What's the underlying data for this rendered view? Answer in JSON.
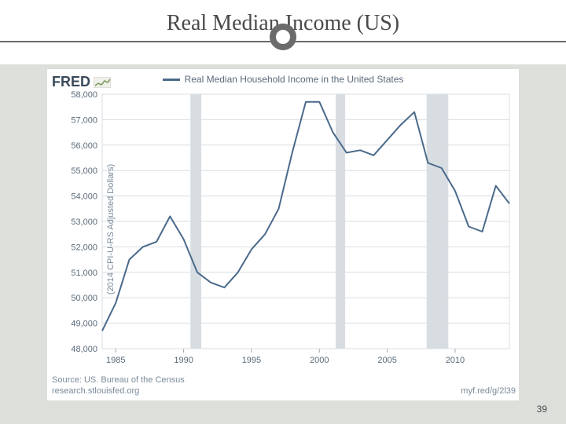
{
  "slide": {
    "title": "Real Median Income (US)",
    "page_number": "39",
    "decor_color": "#6b6b6b"
  },
  "logo": {
    "text": "FRED",
    "color": "#3a4a5a"
  },
  "legend": {
    "label": "Real Median Household Income in the United States",
    "color": "#4a6a8a"
  },
  "chart": {
    "type": "line",
    "background_color": "#ffffff",
    "plot_background": "#ffffff",
    "grid_color": "#d8dde2",
    "axis_color": "#9aa6b2",
    "tick_label_color": "#5a6a7a",
    "tick_fontsize": 11,
    "line_color": "#4a6a8a",
    "line_width": 2,
    "ylabel": "(2014 CPI-U-RS Adjusted Dollars)",
    "xlim": [
      1984,
      2014
    ],
    "ylim": [
      48000,
      58000
    ],
    "xtick_step": 5,
    "xticks": [
      1985,
      1990,
      1995,
      2000,
      2005,
      2010
    ],
    "ytick_step": 1000,
    "yticks": [
      48000,
      49000,
      50000,
      51000,
      52000,
      53000,
      54000,
      55000,
      56000,
      57000,
      58000
    ],
    "recession_bands": [
      {
        "start": 1990.5,
        "end": 1991.3,
        "color": "#d8dde2"
      },
      {
        "start": 2001.2,
        "end": 2001.9,
        "color": "#d8dde2"
      },
      {
        "start": 2007.9,
        "end": 2009.5,
        "color": "#d8dde2"
      }
    ],
    "series": [
      {
        "name": "median-income",
        "x": [
          1984,
          1985,
          1986,
          1987,
          1988,
          1989,
          1990,
          1991,
          1992,
          1993,
          1994,
          1995,
          1996,
          1997,
          1998,
          1999,
          2000,
          2001,
          2002,
          2003,
          2004,
          2005,
          2006,
          2007,
          2008,
          2009,
          2010,
          2011,
          2012,
          2013,
          2014
        ],
        "y": [
          48700,
          49800,
          51500,
          52000,
          52200,
          53200,
          52300,
          51000,
          50600,
          50400,
          51000,
          51900,
          52500,
          53500,
          55700,
          57700,
          57700,
          56500,
          55700,
          55800,
          55600,
          56200,
          56800,
          57300,
          55300,
          55100,
          54200,
          52800,
          52600,
          54400,
          53700
        ]
      }
    ]
  },
  "meta": {
    "source": "Source: US. Bureau of the Census",
    "site": "research.stlouisfed.org",
    "shorturl": "myf.red/g/2l39"
  },
  "page_bg_color": "#dcdfda"
}
